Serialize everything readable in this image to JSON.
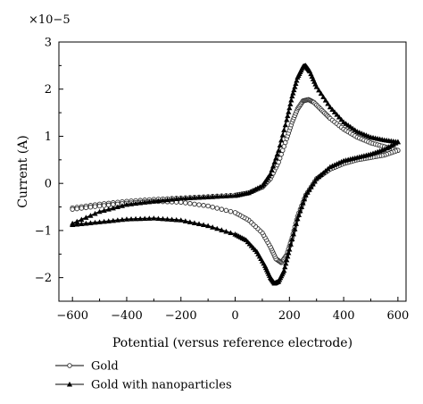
{
  "chart_data": {
    "type": "scatter",
    "xlabel": "Potential (versus reference electrode)",
    "ylabel": "Current (A)",
    "y_multiplier": "×10−5",
    "xlim": [
      -650,
      630
    ],
    "ylim": [
      -2.5,
      3
    ],
    "x_ticks": [
      -600,
      -400,
      -200,
      0,
      200,
      400,
      600
    ],
    "x_tick_labels": [
      "−600",
      "−400",
      "−200",
      "0",
      "200",
      "400",
      "600"
    ],
    "y_ticks": [
      -2,
      -1,
      0,
      1,
      2,
      3
    ],
    "y_tick_labels": [
      "−2",
      "−1",
      "0",
      "1",
      "2",
      "3"
    ],
    "grid": false,
    "legend_position": "bottom-left, below plot",
    "series": [
      {
        "name": "Gold",
        "marker": "open-circle",
        "forward_scan": {
          "x": [
            -600,
            -500,
            -400,
            -300,
            -200,
            -100,
            0,
            50,
            100,
            130,
            160,
            190,
            210,
            230,
            250,
            270,
            290,
            320,
            350,
            400,
            450,
            500,
            550,
            600
          ],
          "y": [
            -0.52,
            -0.44,
            -0.38,
            -0.34,
            -0.31,
            -0.28,
            -0.25,
            -0.2,
            -0.08,
            0.1,
            0.45,
            0.95,
            1.3,
            1.58,
            1.75,
            1.78,
            1.72,
            1.55,
            1.38,
            1.15,
            0.98,
            0.86,
            0.78,
            0.7
          ]
        },
        "reverse_scan": {
          "x": [
            600,
            550,
            500,
            450,
            400,
            350,
            300,
            260,
            230,
            210,
            190,
            170,
            150,
            130,
            100,
            50,
            0,
            -100,
            -200,
            -300,
            -400,
            -500,
            -600
          ],
          "y": [
            0.7,
            0.6,
            0.55,
            0.5,
            0.42,
            0.3,
            0.1,
            -0.25,
            -0.7,
            -1.15,
            -1.52,
            -1.68,
            -1.6,
            -1.35,
            -1.05,
            -0.78,
            -0.62,
            -0.48,
            -0.4,
            -0.38,
            -0.42,
            -0.48,
            -0.55
          ]
        }
      },
      {
        "name": "Gold with nanoparticles",
        "marker": "filled-triangle",
        "forward_scan": {
          "x": [
            -600,
            -500,
            -400,
            -300,
            -200,
            -100,
            0,
            50,
            100,
            130,
            160,
            190,
            210,
            230,
            250,
            260,
            275,
            300,
            350,
            400,
            450,
            500,
            550,
            600
          ],
          "y": [
            -0.85,
            -0.6,
            -0.45,
            -0.38,
            -0.32,
            -0.29,
            -0.26,
            -0.2,
            -0.05,
            0.2,
            0.7,
            1.35,
            1.85,
            2.25,
            2.48,
            2.5,
            2.38,
            2.05,
            1.62,
            1.3,
            1.1,
            0.98,
            0.92,
            0.88
          ]
        },
        "reverse_scan": {
          "x": [
            600,
            550,
            500,
            450,
            400,
            350,
            300,
            260,
            230,
            200,
            180,
            160,
            145,
            130,
            110,
            80,
            40,
            0,
            -100,
            -200,
            -300,
            -400,
            -500,
            -600
          ],
          "y": [
            0.88,
            0.72,
            0.62,
            0.55,
            0.48,
            0.35,
            0.1,
            -0.25,
            -0.75,
            -1.4,
            -1.85,
            -2.08,
            -2.12,
            -2.0,
            -1.75,
            -1.45,
            -1.2,
            -1.08,
            -0.9,
            -0.78,
            -0.74,
            -0.76,
            -0.82,
            -0.88
          ]
        }
      }
    ]
  }
}
